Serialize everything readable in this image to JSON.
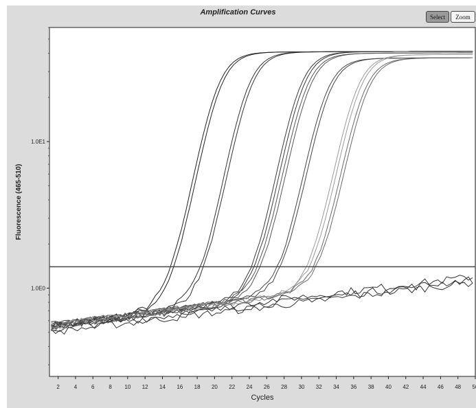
{
  "toolbar": {
    "select_label": "Select",
    "zoom_label": "Zoom"
  },
  "chart_data": {
    "type": "line",
    "title": "Amplification Curves",
    "xlabel": "Cycles",
    "ylabel": "Fluorescence (465-510)",
    "x_ticks": [
      "2",
      "4",
      "6",
      "8",
      "10",
      "12",
      "14",
      "16",
      "18",
      "20",
      "22",
      "24",
      "26",
      "28",
      "30",
      "32",
      "34",
      "36",
      "38",
      "40",
      "42",
      "44",
      "46",
      "48",
      "50"
    ],
    "y_scale": "log",
    "y_ticks": [
      {
        "label": "1.0E1",
        "value": 10
      },
      {
        "label": "1.0E0",
        "value": 1
      }
    ],
    "xlim": [
      1,
      50
    ],
    "ylim": [
      0.25,
      60
    ],
    "grid": false,
    "threshold": 1.4,
    "line_color": "#333333",
    "curve_shades": [
      "#222222",
      "#333333",
      "#3a3a3a",
      "#555555",
      "#444444",
      "#9a9a9a",
      "#6a6a6a",
      "#2e2e2e",
      "#4a4a4a",
      "#3f3f3f"
    ],
    "amplified_samples": [
      {
        "ct": 17.5,
        "midpoint": 20.0,
        "plateau": 40
      },
      {
        "ct": 21.0,
        "midpoint": 23.5,
        "plateau": 40
      },
      {
        "ct": 27.0,
        "midpoint": 29.5,
        "plateau": 40
      },
      {
        "ct": 27.6,
        "midpoint": 30.2,
        "plateau": 39
      },
      {
        "ct": 30.0,
        "midpoint": 32.5,
        "plateau": 36
      },
      {
        "ct": 33.5,
        "midpoint": 36.0,
        "plateau": 38
      },
      {
        "ct": 34.2,
        "midpoint": 36.8,
        "plateau": 36
      }
    ],
    "negative_samples": [
      {
        "start": 0.55,
        "end": 1.2
      },
      {
        "start": 0.52,
        "end": 1.15
      },
      {
        "start": 0.5,
        "end": 1.1
      }
    ]
  }
}
